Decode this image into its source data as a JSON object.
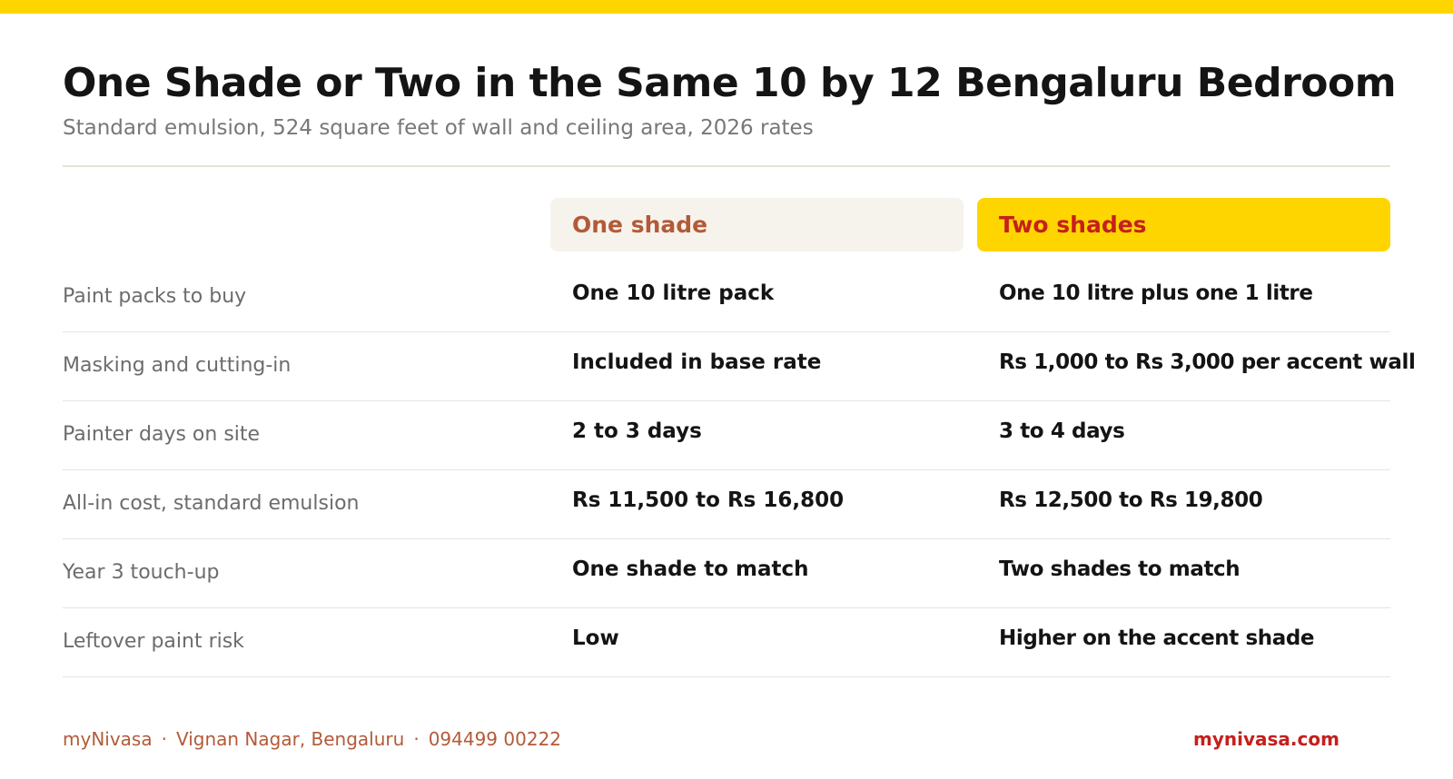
{
  "colors": {
    "accent_yellow": "#FFD500",
    "brand_terracotta": "#B35A38",
    "brand_red": "#C4201C",
    "title_text": "#141414",
    "muted_text": "#6C6C6C",
    "one_shade_header_bg": "#F6F3EC"
  },
  "header": {
    "title": "One Shade or Two in the Same 10 by 12 Bengaluru Bedroom",
    "subtitle": "Standard emulsion, 524 square feet of wall and ceiling area, 2026 rates"
  },
  "table": {
    "columns": [
      "One shade",
      "Two shades"
    ],
    "rows": [
      {
        "label": "Paint packs to buy",
        "one": "One 10 litre pack",
        "two": "One 10 litre plus one 1 litre"
      },
      {
        "label": "Masking and cutting-in",
        "one": "Included in base rate",
        "two": "Rs 1,000 to Rs 3,000 per accent wall"
      },
      {
        "label": "Painter days on site",
        "one": "2 to 3 days",
        "two": "3 to 4 days"
      },
      {
        "label": "All-in cost, standard emulsion",
        "one": "Rs 11,500 to Rs 16,800",
        "two": "Rs 12,500 to Rs 19,800"
      },
      {
        "label": "Year 3 touch-up",
        "one": "One shade to match",
        "two": "Two shades to match"
      },
      {
        "label": "Leftover paint risk",
        "one": "Low",
        "two": "Higher on the accent shade"
      }
    ]
  },
  "footer": {
    "brand": "myNivasa",
    "separator": "·",
    "location": "Vignan Nagar, Bengaluru",
    "phone": "094499 00222",
    "website": "mynivasa.com"
  }
}
